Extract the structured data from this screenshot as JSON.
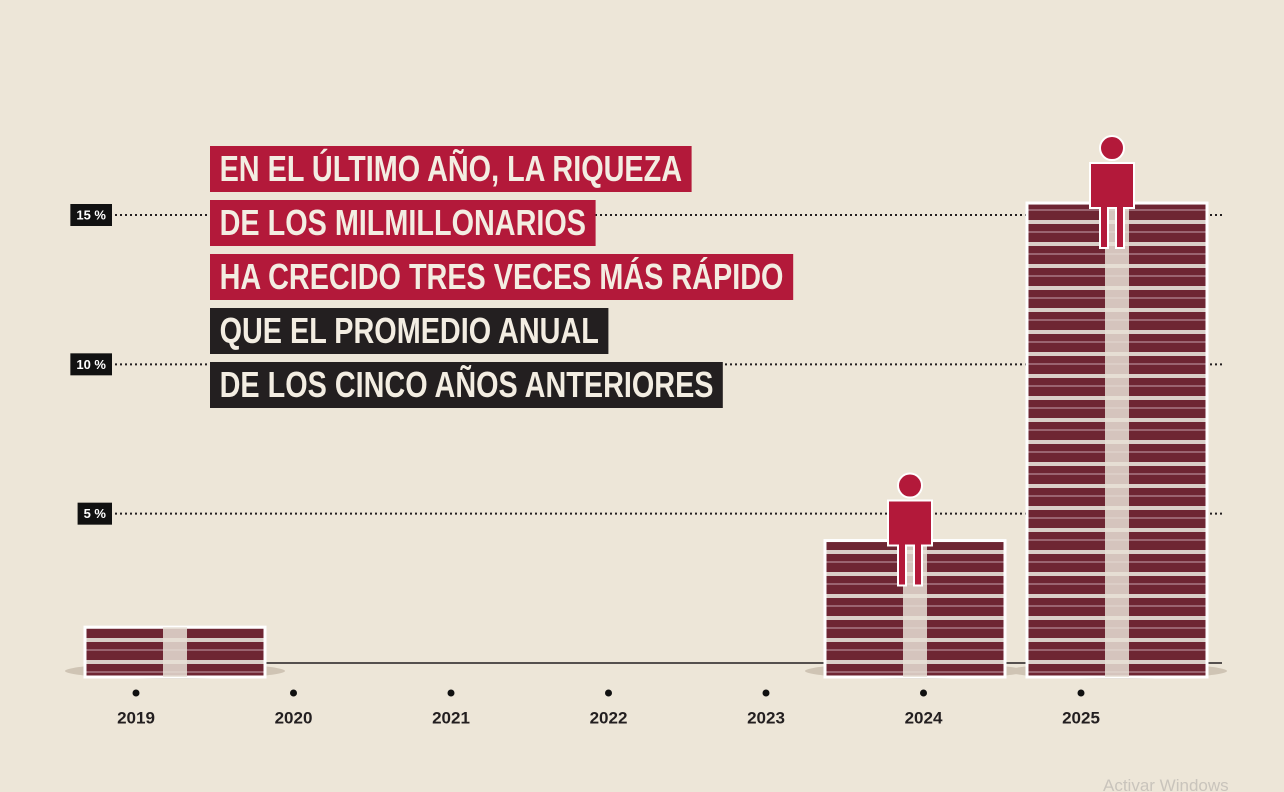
{
  "chart_data": {
    "type": "bar",
    "title_lines": [
      {
        "text": "EN EL ÚLTIMO AÑO, LA RIQUEZA",
        "color": "#b3193a"
      },
      {
        "text": "DE LOS MILMILLONARIOS",
        "color": "#b3193a"
      },
      {
        "text": "HA CRECIDO TRES VECES MÁS RÁPIDO",
        "color": "#b3193a"
      },
      {
        "text": "QUE EL PROMEDIO ANUAL",
        "color": "#231f20"
      },
      {
        "text": "DE LOS CINCO AÑOS ANTERIORES",
        "color": "#231f20"
      }
    ],
    "categories": [
      "2019",
      "2020",
      "2021",
      "2022",
      "2023",
      "2024",
      "2025"
    ],
    "values": [
      1.2,
      0,
      0,
      0,
      0,
      4.1,
      15.4
    ],
    "color": "#6e2633",
    "ylim": [
      0,
      17
    ],
    "yticks": [
      0,
      {
        "value": 5,
        "label": "5 %"
      },
      {
        "value": 10,
        "label": "10 %"
      },
      {
        "value": 15,
        "label": "15 %"
      }
    ],
    "grid": true,
    "watermark": "Activar Windows"
  }
}
